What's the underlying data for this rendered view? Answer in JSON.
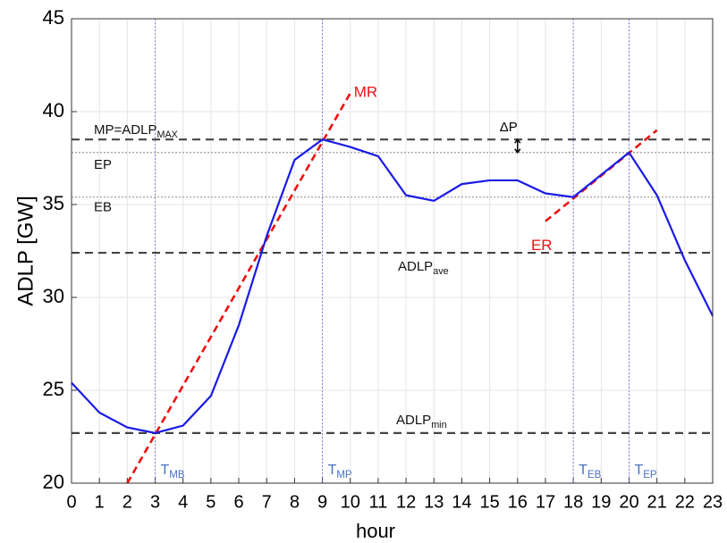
{
  "chart_data": {
    "type": "line",
    "xlabel": "hour",
    "ylabel": "ADLP [GW]",
    "x": [
      0,
      1,
      2,
      3,
      4,
      5,
      6,
      7,
      8,
      9,
      10,
      11,
      12,
      13,
      14,
      15,
      16,
      17,
      18,
      19,
      20,
      21,
      22,
      23
    ],
    "xlim": [
      0,
      23
    ],
    "xticks": [
      0,
      1,
      2,
      3,
      4,
      5,
      6,
      7,
      8,
      9,
      10,
      11,
      12,
      13,
      14,
      15,
      16,
      17,
      18,
      19,
      20,
      21,
      22,
      23
    ],
    "ylim": [
      20,
      45
    ],
    "yticks": [
      20,
      25,
      30,
      35,
      40,
      45
    ],
    "grid": true,
    "series": [
      {
        "color": "#1a1ae6",
        "values": [
          25.4,
          23.8,
          23.0,
          22.7,
          23.1,
          24.7,
          28.5,
          33.3,
          37.4,
          38.5,
          38.1,
          37.6,
          35.5,
          35.2,
          36.1,
          36.3,
          36.3,
          35.6,
          35.4,
          36.6,
          37.8,
          35.5,
          32.0,
          29.0
        ]
      }
    ],
    "hlines": [
      {
        "value": 38.5,
        "style": "dashed",
        "label": "MP=ADLP",
        "label_sub": "MAX"
      },
      {
        "value": 37.8,
        "style": "dotted",
        "label": "EP"
      },
      {
        "value": 35.4,
        "style": "dotted",
        "label": "EB"
      },
      {
        "value": 32.4,
        "style": "dashed",
        "label": "ADLP",
        "label_sub": "ave"
      },
      {
        "value": 22.7,
        "style": "dashed",
        "label": "ADLP",
        "label_sub": "min"
      }
    ],
    "vlines": [
      {
        "value": 3,
        "label": "T",
        "label_sub": "MB"
      },
      {
        "value": 9,
        "label": "T",
        "label_sub": "MP"
      },
      {
        "value": 18,
        "label": "T",
        "label_sub": "EB"
      },
      {
        "value": 20,
        "label": "T",
        "label_sub": "EP"
      }
    ],
    "trend_lines": [
      {
        "label": "MR",
        "color": "#ee1111",
        "x": [
          2,
          10
        ],
        "y": [
          20,
          41
        ]
      },
      {
        "label": "ER",
        "color": "#ee1111",
        "x": [
          17,
          21
        ],
        "y": [
          34.1,
          39
        ]
      }
    ],
    "delta_p": {
      "label": "ΔP",
      "x": 16,
      "y": [
        37.8,
        38.5
      ]
    }
  }
}
